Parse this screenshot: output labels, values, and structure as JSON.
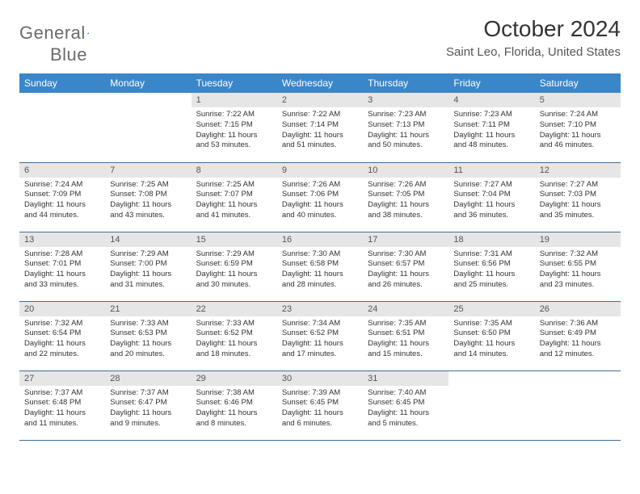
{
  "logo": {
    "word1": "General",
    "word2": "Blue"
  },
  "title": "October 2024",
  "location": "Saint Leo, Florida, United States",
  "colors": {
    "header_bg": "#3b86c8",
    "header_text": "#ffffff",
    "daynum_bg": "#e6e6e6",
    "border": "#3b6f9a",
    "logo_gray": "#6b6b6b",
    "logo_blue": "#3b7fc4"
  },
  "typography": {
    "title_fontsize": 28,
    "location_fontsize": 15,
    "dayhead_fontsize": 12,
    "daynum_fontsize": 11,
    "info_fontsize": 9.5
  },
  "day_names": [
    "Sunday",
    "Monday",
    "Tuesday",
    "Wednesday",
    "Thursday",
    "Friday",
    "Saturday"
  ],
  "weeks": [
    [
      {
        "n": "",
        "sunrise": "",
        "sunset": "",
        "daylight": "",
        "empty": true
      },
      {
        "n": "",
        "sunrise": "",
        "sunset": "",
        "daylight": "",
        "empty": true
      },
      {
        "n": "1",
        "sunrise": "Sunrise: 7:22 AM",
        "sunset": "Sunset: 7:15 PM",
        "daylight": "Daylight: 11 hours and 53 minutes."
      },
      {
        "n": "2",
        "sunrise": "Sunrise: 7:22 AM",
        "sunset": "Sunset: 7:14 PM",
        "daylight": "Daylight: 11 hours and 51 minutes."
      },
      {
        "n": "3",
        "sunrise": "Sunrise: 7:23 AM",
        "sunset": "Sunset: 7:13 PM",
        "daylight": "Daylight: 11 hours and 50 minutes."
      },
      {
        "n": "4",
        "sunrise": "Sunrise: 7:23 AM",
        "sunset": "Sunset: 7:11 PM",
        "daylight": "Daylight: 11 hours and 48 minutes."
      },
      {
        "n": "5",
        "sunrise": "Sunrise: 7:24 AM",
        "sunset": "Sunset: 7:10 PM",
        "daylight": "Daylight: 11 hours and 46 minutes."
      }
    ],
    [
      {
        "n": "6",
        "sunrise": "Sunrise: 7:24 AM",
        "sunset": "Sunset: 7:09 PM",
        "daylight": "Daylight: 11 hours and 44 minutes."
      },
      {
        "n": "7",
        "sunrise": "Sunrise: 7:25 AM",
        "sunset": "Sunset: 7:08 PM",
        "daylight": "Daylight: 11 hours and 43 minutes."
      },
      {
        "n": "8",
        "sunrise": "Sunrise: 7:25 AM",
        "sunset": "Sunset: 7:07 PM",
        "daylight": "Daylight: 11 hours and 41 minutes."
      },
      {
        "n": "9",
        "sunrise": "Sunrise: 7:26 AM",
        "sunset": "Sunset: 7:06 PM",
        "daylight": "Daylight: 11 hours and 40 minutes."
      },
      {
        "n": "10",
        "sunrise": "Sunrise: 7:26 AM",
        "sunset": "Sunset: 7:05 PM",
        "daylight": "Daylight: 11 hours and 38 minutes."
      },
      {
        "n": "11",
        "sunrise": "Sunrise: 7:27 AM",
        "sunset": "Sunset: 7:04 PM",
        "daylight": "Daylight: 11 hours and 36 minutes."
      },
      {
        "n": "12",
        "sunrise": "Sunrise: 7:27 AM",
        "sunset": "Sunset: 7:03 PM",
        "daylight": "Daylight: 11 hours and 35 minutes."
      }
    ],
    [
      {
        "n": "13",
        "sunrise": "Sunrise: 7:28 AM",
        "sunset": "Sunset: 7:01 PM",
        "daylight": "Daylight: 11 hours and 33 minutes."
      },
      {
        "n": "14",
        "sunrise": "Sunrise: 7:29 AM",
        "sunset": "Sunset: 7:00 PM",
        "daylight": "Daylight: 11 hours and 31 minutes."
      },
      {
        "n": "15",
        "sunrise": "Sunrise: 7:29 AM",
        "sunset": "Sunset: 6:59 PM",
        "daylight": "Daylight: 11 hours and 30 minutes."
      },
      {
        "n": "16",
        "sunrise": "Sunrise: 7:30 AM",
        "sunset": "Sunset: 6:58 PM",
        "daylight": "Daylight: 11 hours and 28 minutes."
      },
      {
        "n": "17",
        "sunrise": "Sunrise: 7:30 AM",
        "sunset": "Sunset: 6:57 PM",
        "daylight": "Daylight: 11 hours and 26 minutes."
      },
      {
        "n": "18",
        "sunrise": "Sunrise: 7:31 AM",
        "sunset": "Sunset: 6:56 PM",
        "daylight": "Daylight: 11 hours and 25 minutes."
      },
      {
        "n": "19",
        "sunrise": "Sunrise: 7:32 AM",
        "sunset": "Sunset: 6:55 PM",
        "daylight": "Daylight: 11 hours and 23 minutes."
      }
    ],
    [
      {
        "n": "20",
        "sunrise": "Sunrise: 7:32 AM",
        "sunset": "Sunset: 6:54 PM",
        "daylight": "Daylight: 11 hours and 22 minutes."
      },
      {
        "n": "21",
        "sunrise": "Sunrise: 7:33 AM",
        "sunset": "Sunset: 6:53 PM",
        "daylight": "Daylight: 11 hours and 20 minutes."
      },
      {
        "n": "22",
        "sunrise": "Sunrise: 7:33 AM",
        "sunset": "Sunset: 6:52 PM",
        "daylight": "Daylight: 11 hours and 18 minutes."
      },
      {
        "n": "23",
        "sunrise": "Sunrise: 7:34 AM",
        "sunset": "Sunset: 6:52 PM",
        "daylight": "Daylight: 11 hours and 17 minutes."
      },
      {
        "n": "24",
        "sunrise": "Sunrise: 7:35 AM",
        "sunset": "Sunset: 6:51 PM",
        "daylight": "Daylight: 11 hours and 15 minutes."
      },
      {
        "n": "25",
        "sunrise": "Sunrise: 7:35 AM",
        "sunset": "Sunset: 6:50 PM",
        "daylight": "Daylight: 11 hours and 14 minutes."
      },
      {
        "n": "26",
        "sunrise": "Sunrise: 7:36 AM",
        "sunset": "Sunset: 6:49 PM",
        "daylight": "Daylight: 11 hours and 12 minutes."
      }
    ],
    [
      {
        "n": "27",
        "sunrise": "Sunrise: 7:37 AM",
        "sunset": "Sunset: 6:48 PM",
        "daylight": "Daylight: 11 hours and 11 minutes."
      },
      {
        "n": "28",
        "sunrise": "Sunrise: 7:37 AM",
        "sunset": "Sunset: 6:47 PM",
        "daylight": "Daylight: 11 hours and 9 minutes."
      },
      {
        "n": "29",
        "sunrise": "Sunrise: 7:38 AM",
        "sunset": "Sunset: 6:46 PM",
        "daylight": "Daylight: 11 hours and 8 minutes."
      },
      {
        "n": "30",
        "sunrise": "Sunrise: 7:39 AM",
        "sunset": "Sunset: 6:45 PM",
        "daylight": "Daylight: 11 hours and 6 minutes."
      },
      {
        "n": "31",
        "sunrise": "Sunrise: 7:40 AM",
        "sunset": "Sunset: 6:45 PM",
        "daylight": "Daylight: 11 hours and 5 minutes."
      },
      {
        "n": "",
        "sunrise": "",
        "sunset": "",
        "daylight": "",
        "empty": true
      },
      {
        "n": "",
        "sunrise": "",
        "sunset": "",
        "daylight": "",
        "empty": true
      }
    ]
  ]
}
